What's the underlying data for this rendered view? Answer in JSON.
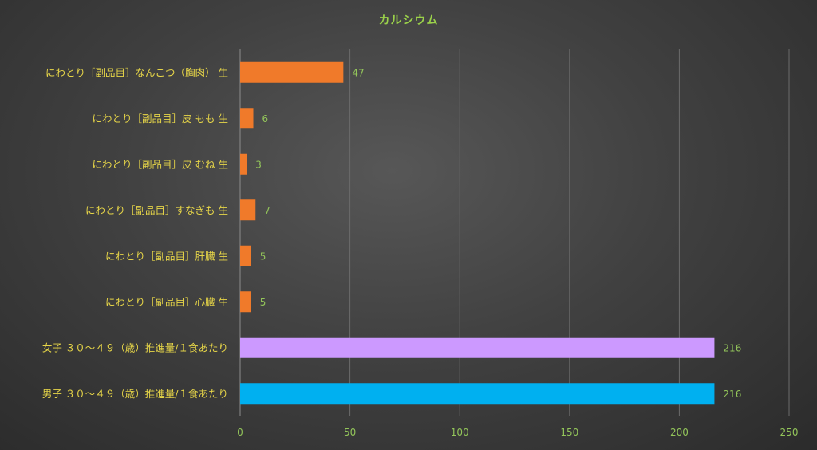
{
  "chart_data": {
    "type": "bar",
    "orientation": "horizontal",
    "title": "カルシウム",
    "categories": [
      "にわとり［副品目］なんこつ（胸肉） 生",
      "にわとり［副品目］皮 もも 生",
      "にわとり［副品目］皮 むね 生",
      "にわとり［副品目］すなぎも 生",
      "にわとり［副品目］肝臓 生",
      "にわとり［副品目］心臓 生",
      "女子 ３０～４９（歳）推進量/１食あたり",
      "男子 ３０～４９（歳）推進量/１食あたり"
    ],
    "values": [
      47,
      6,
      3,
      7,
      5,
      5,
      216,
      216
    ],
    "value_labels": [
      "47",
      "6",
      "3",
      "7",
      "5",
      "5",
      "216",
      "216"
    ],
    "bar_colors": [
      "#f07a2a",
      "#f07a2a",
      "#f07a2a",
      "#f07a2a",
      "#f07a2a",
      "#f07a2a",
      "#cc99ff",
      "#00b0f0"
    ],
    "xlim": [
      0,
      250
    ],
    "x_ticks": [
      0,
      50,
      100,
      150,
      200,
      250
    ],
    "x_tick_labels": [
      "0",
      "50",
      "100",
      "150",
      "200",
      "250"
    ],
    "grid": true,
    "legend": "none",
    "colors": {
      "title": "#9bd24a",
      "category_label": "#e6d548",
      "tick_label": "#93c55a",
      "gridline": "#6b6b6b",
      "axis": "#8c8c8c"
    }
  }
}
